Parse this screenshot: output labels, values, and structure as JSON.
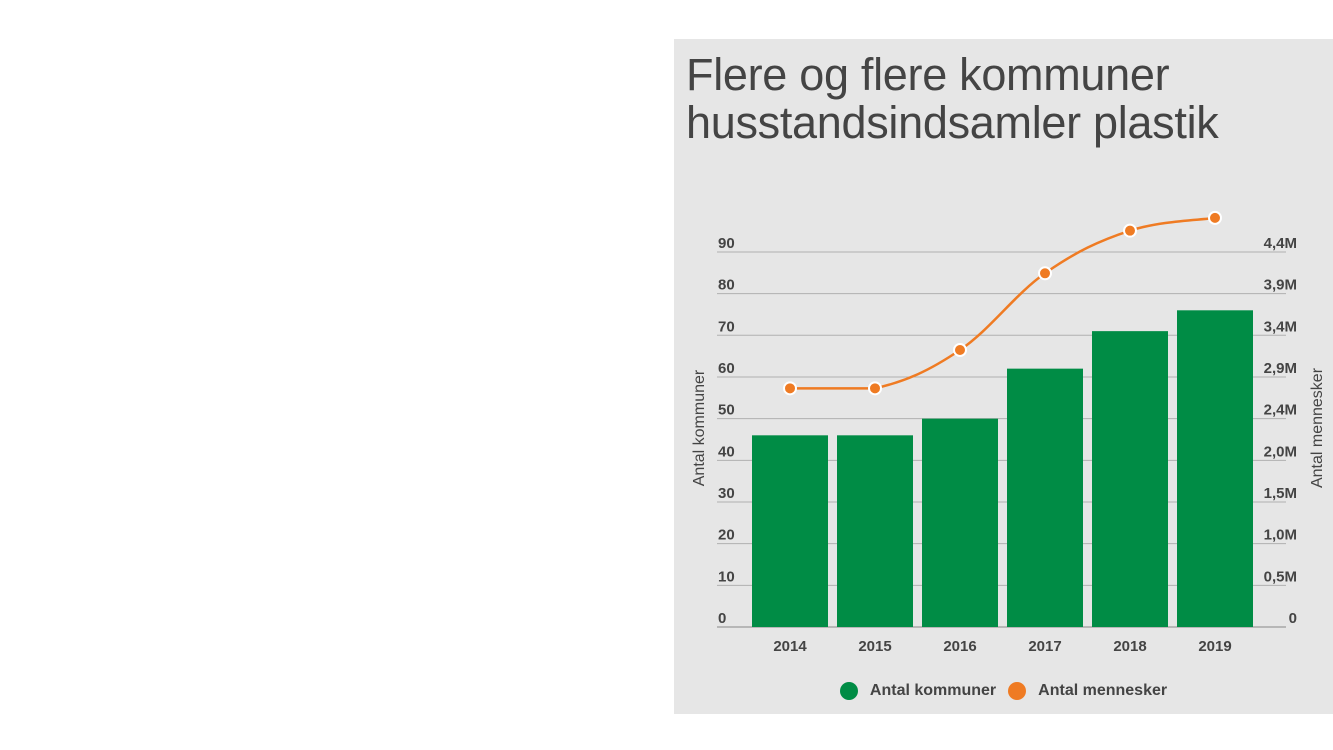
{
  "chart_data": {
    "type": "bar",
    "title_lines": [
      "Flere og flere kommuner",
      "husstandsindsamler plastik"
    ],
    "categories": [
      "2014",
      "2015",
      "2016",
      "2017",
      "2018",
      "2019"
    ],
    "series": [
      {
        "name": "Antal kommuner",
        "type": "bar",
        "axis": "left",
        "color": "#008c45",
        "values": [
          46,
          46,
          50,
          62,
          71,
          76
        ]
      },
      {
        "name": "Antal mennesker",
        "type": "line",
        "axis": "right",
        "color": "#ef7b23",
        "values": [
          2.8,
          2.8,
          3.25,
          4.15,
          4.65,
          4.8
        ]
      }
    ],
    "y_left": {
      "label": "Antal kommuner",
      "ylim": [
        0,
        90
      ],
      "ticks": [
        0,
        10,
        20,
        30,
        40,
        50,
        60,
        70,
        80,
        90
      ],
      "tick_labels": [
        "0",
        "10",
        "20",
        "30",
        "40",
        "50",
        "60",
        "70",
        "80",
        "90"
      ]
    },
    "y_right": {
      "label": "Antal mennesker",
      "unit": "millions",
      "ticks": [
        0,
        0.5,
        1.0,
        1.5,
        2.0,
        2.4,
        2.9,
        3.4,
        3.9,
        4.4
      ],
      "tick_labels": [
        "0",
        "0,5M",
        "1,0M",
        "1,5M",
        "2,0M",
        "2,4M",
        "2,9M",
        "3,4M",
        "3,9M",
        "4,4M"
      ]
    },
    "grid": true,
    "legend_position": "bottom-center"
  }
}
